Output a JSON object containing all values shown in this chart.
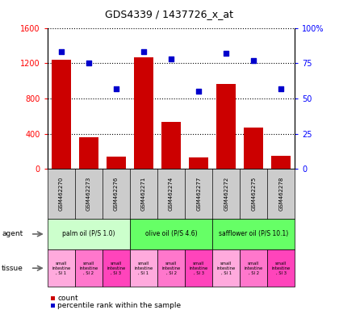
{
  "title": "GDS4339 / 1437726_x_at",
  "samples": [
    "GSM462270",
    "GSM462273",
    "GSM462276",
    "GSM462271",
    "GSM462274",
    "GSM462277",
    "GSM462272",
    "GSM462275",
    "GSM462278"
  ],
  "counts": [
    1240,
    360,
    140,
    1270,
    530,
    130,
    960,
    470,
    150
  ],
  "percentiles": [
    83,
    75,
    57,
    83,
    78,
    55,
    82,
    77,
    57
  ],
  "ylim_left": [
    0,
    1600
  ],
  "ylim_right": [
    0,
    100
  ],
  "yticks_left": [
    0,
    400,
    800,
    1200,
    1600
  ],
  "yticks_right": [
    0,
    25,
    50,
    75,
    100
  ],
  "bar_color": "#cc0000",
  "dot_color": "#0000cc",
  "agents": [
    {
      "label": "palm oil (P/S 1.0)",
      "start": 0,
      "end": 3,
      "color": "#ccffcc"
    },
    {
      "label": "olive oil (P/S 4.6)",
      "start": 3,
      "end": 6,
      "color": "#66ff66"
    },
    {
      "label": "safflower oil (P/S 10.1)",
      "start": 6,
      "end": 9,
      "color": "#66ff66"
    }
  ],
  "tissues": [
    "small\nintestine\n, SI 1",
    "small\nintestine\n, SI 2",
    "small\nintestine\n, SI 3",
    "small\nintestine\n, SI 1",
    "small\nintestine\n, SI 2",
    "small\nintestine\n, SI 3",
    "small\nintestine\n, SI 1",
    "small\nintestine\n, SI 2",
    "small\nintestine\n, SI 3"
  ],
  "tissue_colors": [
    "#ff99cc",
    "#ff66bb",
    "#ff33aa",
    "#ff99cc",
    "#ff66bb",
    "#ff33aa",
    "#ff99cc",
    "#ff66bb",
    "#ff33aa"
  ],
  "xaxis_bg_color": "#cccccc",
  "agent_row_label": "agent",
  "tissue_row_label": "tissue",
  "legend_count_label": "count",
  "legend_pct_label": "percentile rank within the sample",
  "grid_color": "#000000",
  "plot_bg_color": "#ffffff"
}
